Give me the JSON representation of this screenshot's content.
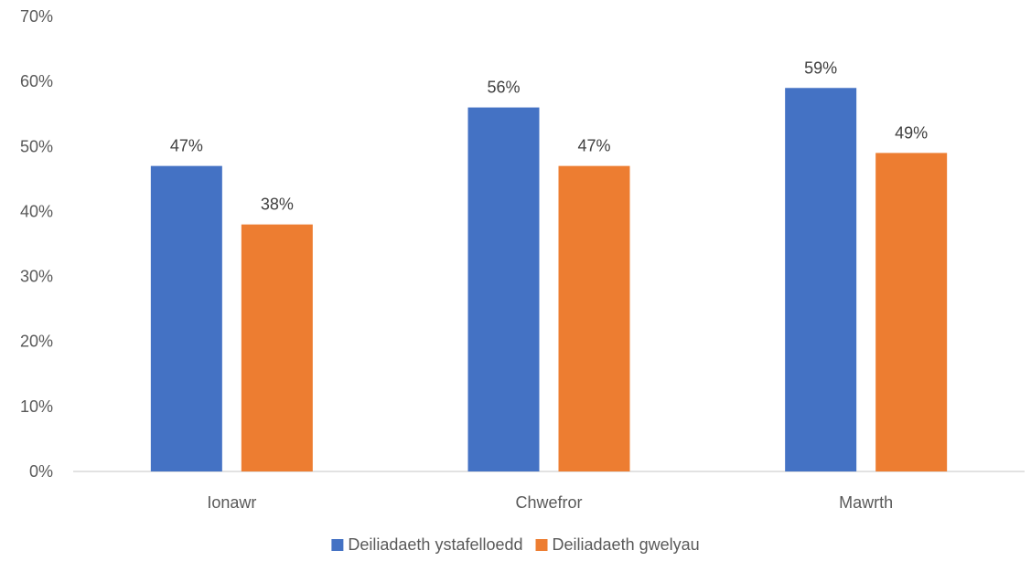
{
  "chart_data": {
    "type": "bar",
    "categories": [
      "Ionawr",
      "Chwefror",
      "Mawrth"
    ],
    "series": [
      {
        "name": "Deiliadaeth ystafelloedd",
        "values": [
          47,
          56,
          59
        ],
        "labels": [
          "47%",
          "56%",
          "59%"
        ],
        "color": "#4472C4"
      },
      {
        "name": "Deiliadaeth gwelyau",
        "values": [
          38,
          47,
          49
        ],
        "labels": [
          "38%",
          "47%",
          "49%"
        ],
        "color": "#ED7D31"
      }
    ],
    "yticks": [
      0,
      10,
      20,
      30,
      40,
      50,
      60,
      70
    ],
    "ytick_labels": [
      "0%",
      "10%",
      "20%",
      "30%",
      "40%",
      "50%",
      "60%",
      "70%"
    ],
    "ylim": [
      0,
      70
    ],
    "grid": false,
    "legend": "bottom"
  }
}
